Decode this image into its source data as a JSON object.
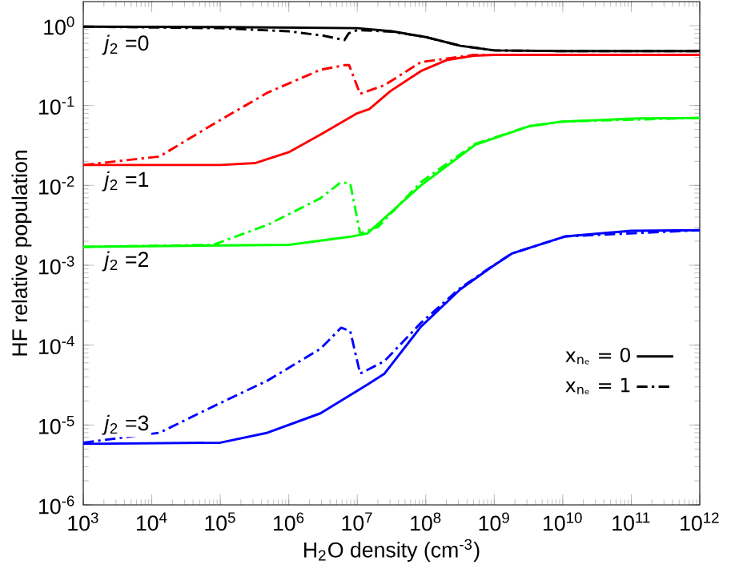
{
  "chart_data": {
    "type": "line",
    "xlabel": "H$_{2}$O density (cm$^{-3}$)",
    "ylabel": "HF relative population",
    "log": "xy",
    "xlim": [
      1000,
      1000000000000.0
    ],
    "ylim": [
      1e-06,
      2
    ],
    "xticks": [
      {
        "value": 1000.0,
        "label": "10$^{3}$"
      },
      {
        "value": 10000.0,
        "label": "10$^{4}$"
      },
      {
        "value": 100000.0,
        "label": "10$^{5}$"
      },
      {
        "value": 1000000.0,
        "label": "10$^{6}$"
      },
      {
        "value": 10000000.0,
        "label": "10$^{7}$"
      },
      {
        "value": 100000000.0,
        "label": "10$^{8}$"
      },
      {
        "value": 1000000000.0,
        "label": "10$^{9}$"
      },
      {
        "value": 10000000000.0,
        "label": "10$^{10}$"
      },
      {
        "value": 100000000000.0,
        "label": "10$^{11}$"
      },
      {
        "value": 1000000000000.0,
        "label": "10$^{12}$"
      }
    ],
    "yticks": [
      {
        "value": 1e-06,
        "label": "10$^{-6}$"
      },
      {
        "value": 1e-05,
        "label": "10$^{-5}$"
      },
      {
        "value": 0.0001,
        "label": "10$^{-4}$"
      },
      {
        "value": 0.001,
        "label": "10$^{-3}$"
      },
      {
        "value": 0.01,
        "label": "10$^{-2}$"
      },
      {
        "value": 0.1,
        "label": "10$^{-1}$"
      },
      {
        "value": 1,
        "label": "10$^{0}$"
      }
    ],
    "grid": false,
    "legend": "bottom right",
    "marker": "none",
    "series": [
      {
        "name": "x$_{nₑ}$ = 0",
        "color": "#000000",
        "line_style": "solid",
        "x": [
          1000.0,
          100000.0,
          10000000.0,
          32000000.0,
          100000000.0,
          320000000.0,
          1000000000.0,
          10000000000.0,
          1000000000000.0
        ],
        "values": [
          0.97,
          0.96,
          0.93,
          0.85,
          0.72,
          0.56,
          0.49,
          0.48,
          0.48
        ]
      },
      {
        "name": "x$_{nₑ}$ = 1",
        "color": "#000000",
        "line_style": "dashdot",
        "x": [
          1000.0,
          100000.0,
          1000000.0,
          3200000.0,
          6500000.0,
          7500000.0,
          10000000.0,
          32000000.0,
          100000000.0,
          320000000.0,
          1000000000.0,
          10000000000.0,
          1000000000000.0
        ],
        "values": [
          0.97,
          0.93,
          0.85,
          0.75,
          0.66,
          0.8,
          0.88,
          0.84,
          0.72,
          0.56,
          0.49,
          0.48,
          0.48
        ]
      },
      {
        "color": "#ff0000",
        "line_style": "solid",
        "x": [
          1000.0,
          100000.0,
          320000.0,
          1000000.0,
          3000000.0,
          10000000.0,
          15000000.0,
          30000000.0,
          85000000.0,
          200000000.0,
          500000000.0,
          1000000000.0,
          10000000000.0,
          1000000000000.0
        ],
        "values": [
          0.018,
          0.018,
          0.019,
          0.026,
          0.044,
          0.08,
          0.09,
          0.15,
          0.27,
          0.37,
          0.42,
          0.43,
          0.43,
          0.43
        ]
      },
      {
        "color": "#ff0000",
        "line_style": "dashdot",
        "x": [
          1000.0,
          13000.0,
          78000.0,
          490000.0,
          2900000.0,
          6500000.0,
          7600000.0,
          11000000.0,
          25000000.0,
          85000000.0,
          500000000.0,
          1000000000.0,
          1000000000000.0
        ],
        "values": [
          0.018,
          0.023,
          0.058,
          0.145,
          0.28,
          0.32,
          0.32,
          0.14,
          0.18,
          0.35,
          0.43,
          0.43,
          0.43
        ]
      },
      {
        "color": "#00ff00",
        "line_style": "solid",
        "x": [
          1000.0,
          1000000.0,
          8500000.0,
          14000000.0,
          85000000.0,
          520000000.0,
          3200000000.0,
          10000000000.0,
          130000000000.0,
          1000000000000.0
        ],
        "values": [
          0.0017,
          0.0018,
          0.0023,
          0.0025,
          0.01,
          0.032,
          0.055,
          0.063,
          0.069,
          0.07
        ]
      },
      {
        "color": "#00ff00",
        "line_style": "dashdot",
        "x": [
          1000.0,
          78000.0,
          490000.0,
          2900000.0,
          5800000.0,
          7900000.0,
          11000000.0,
          20000000.0,
          85000000.0,
          520000000.0,
          3200000000.0,
          10000000000.0,
          1000000000000.0
        ],
        "values": [
          0.0017,
          0.0018,
          0.0032,
          0.0069,
          0.011,
          0.0105,
          0.0025,
          0.003,
          0.011,
          0.033,
          0.055,
          0.063,
          0.07
        ]
      },
      {
        "color": "#0000ff",
        "line_style": "solid",
        "x": [
          1000.0,
          100000.0,
          490000.0,
          2900000.0,
          14000000.0,
          25000000.0,
          85000000.0,
          320000000.0,
          910000000.0,
          1800000000.0,
          11000000000.0,
          100000000000.0,
          1000000000000.0
        ],
        "values": [
          5.8e-06,
          6e-06,
          8e-06,
          1.4e-05,
          3.2e-05,
          4.4e-05,
          0.00017,
          0.0005,
          0.00095,
          0.0014,
          0.0023,
          0.0027,
          0.00275
        ]
      },
      {
        "color": "#0000ff",
        "line_style": "dashdot",
        "x": [
          1000.0,
          13000.0,
          78000.0,
          490000.0,
          2900000.0,
          5800000.0,
          7900000.0,
          11000000.0,
          25000000.0,
          85000000.0,
          320000000.0,
          910000000.0,
          1800000000.0,
          11000000000.0,
          1000000000000.0
        ],
        "values": [
          6e-06,
          8e-06,
          1.7e-05,
          3.6e-05,
          9e-05,
          0.000165,
          0.00015,
          4.4e-05,
          6.3e-05,
          0.00019,
          0.00052,
          0.00096,
          0.0014,
          0.0023,
          0.00275
        ]
      }
    ],
    "annotations": [
      "*j*$_{2}$ =0",
      "*j*$_{2}$ =1",
      "*j*$_{2}$ =2",
      "*j*$_{2}$ =3"
    ]
  }
}
